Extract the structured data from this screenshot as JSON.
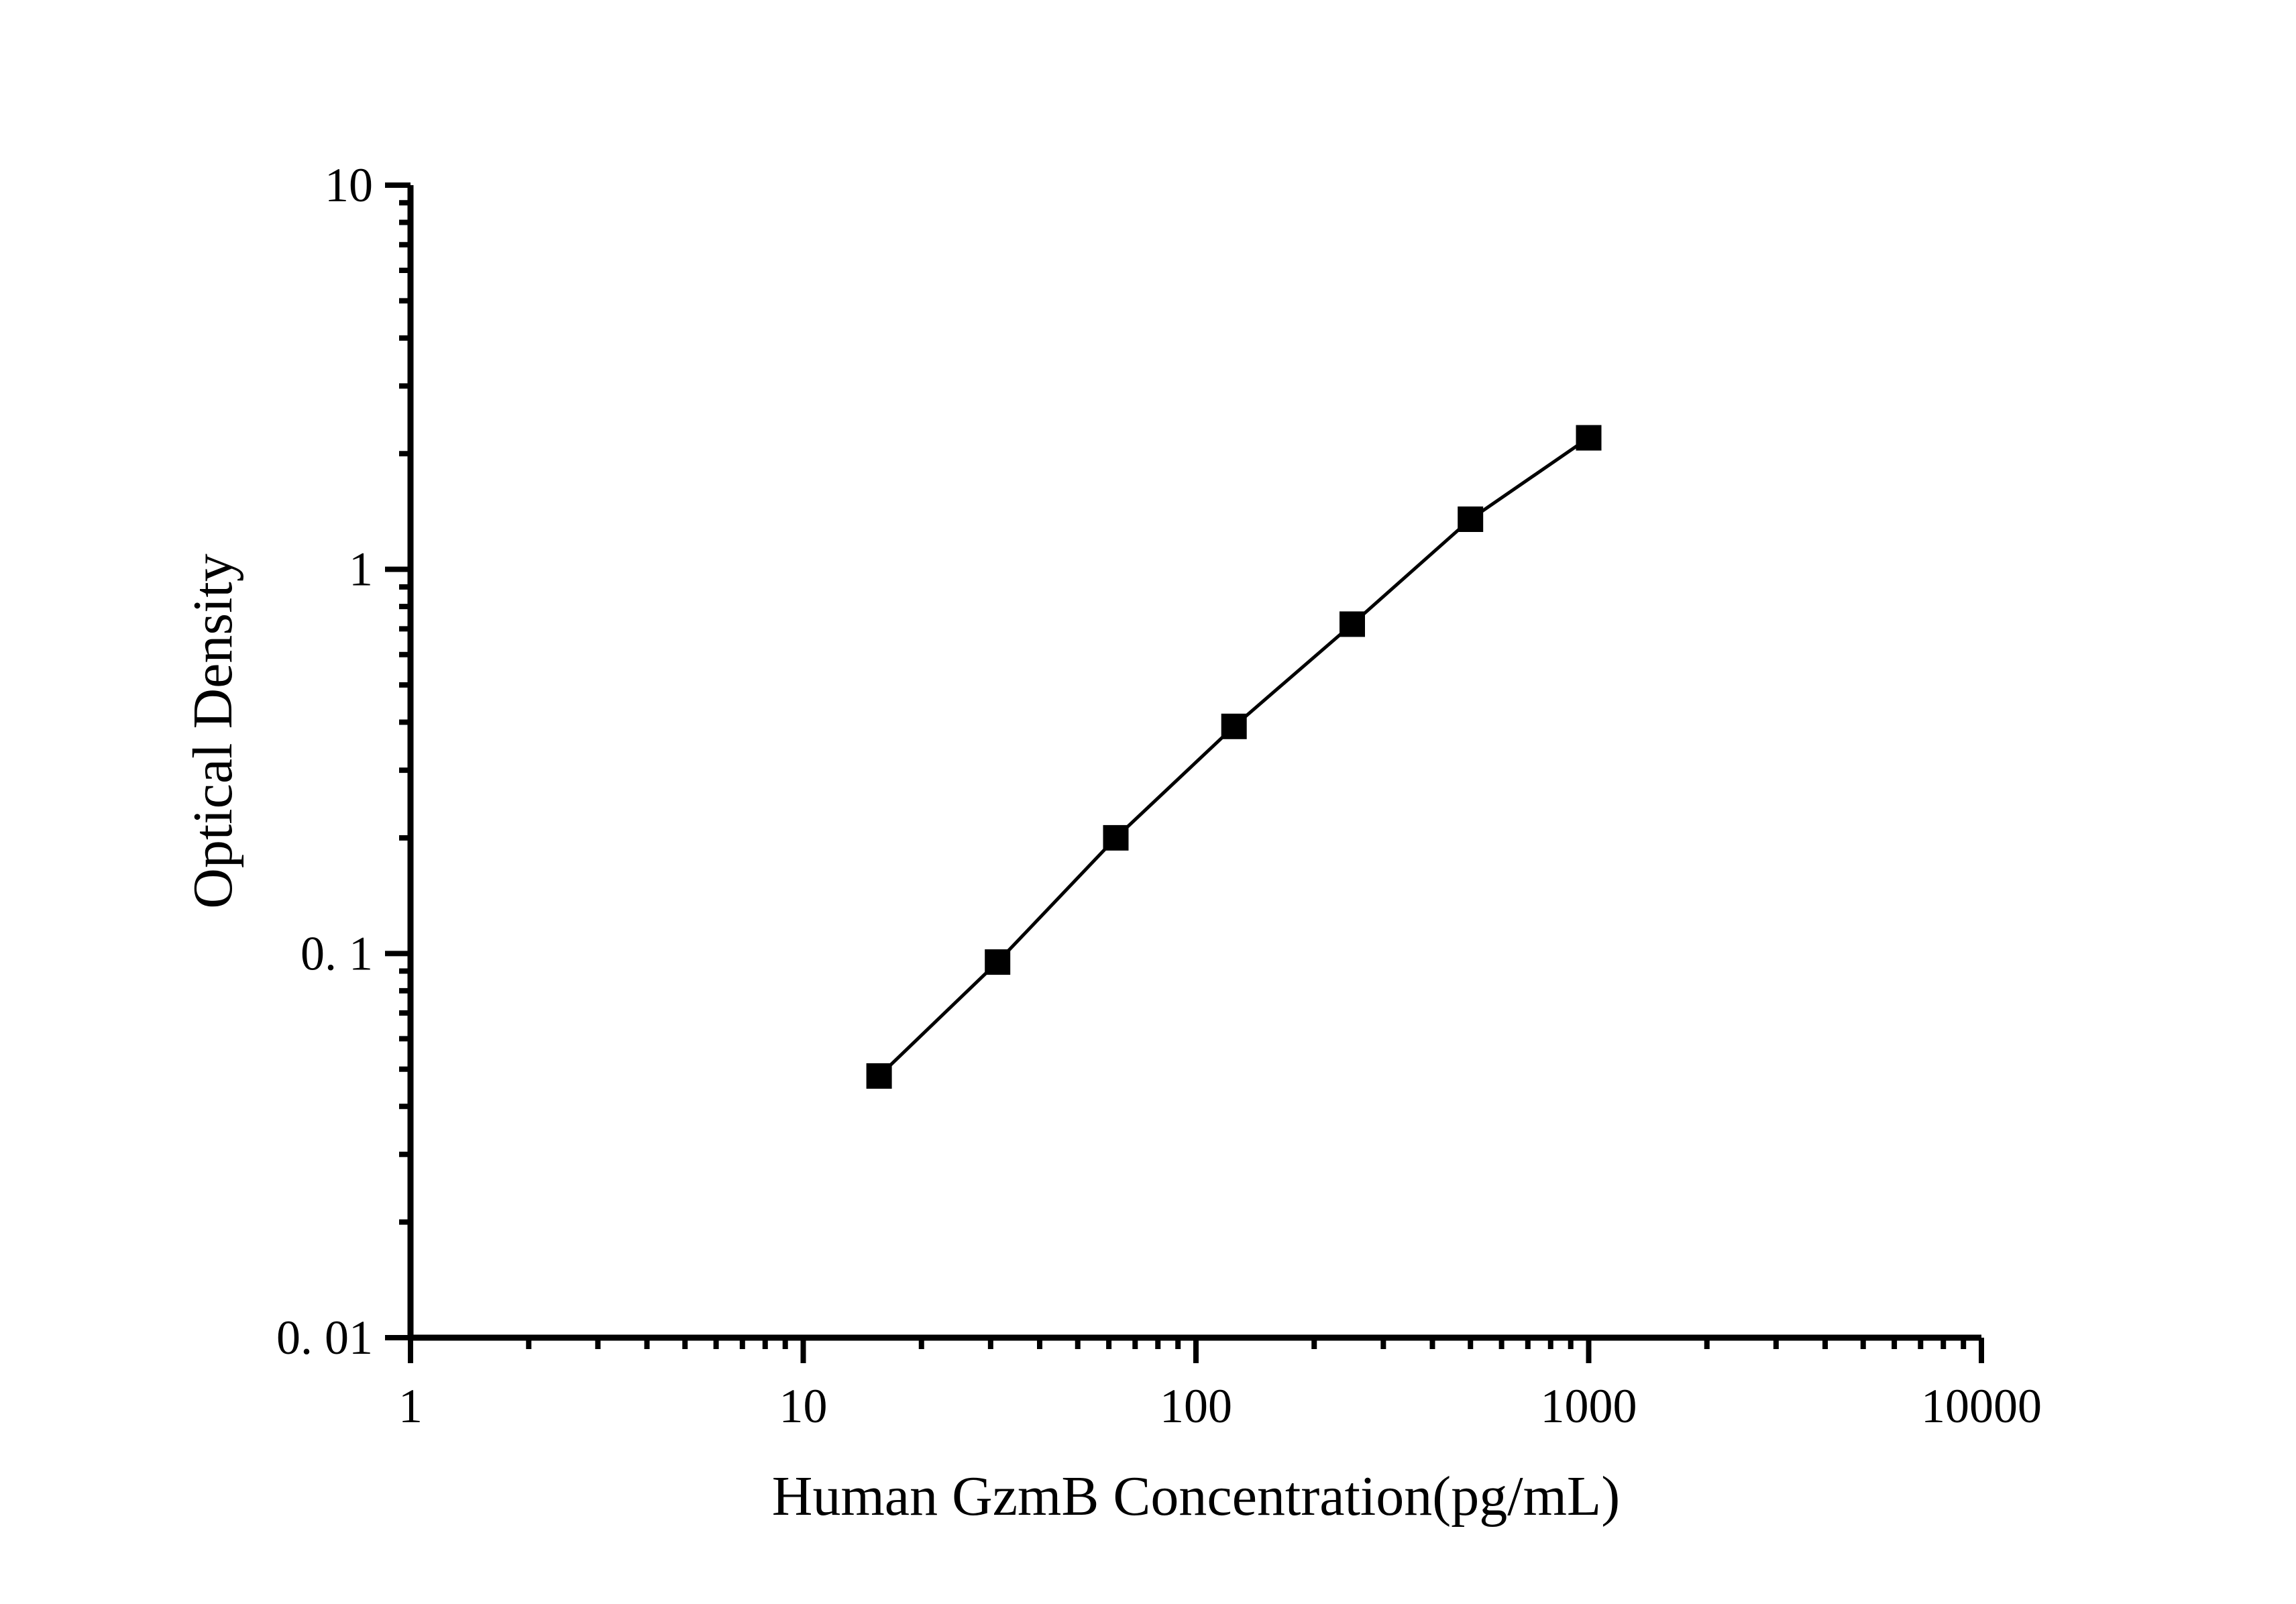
{
  "figure": {
    "background": "#ffffff",
    "axis_color": "#000000"
  },
  "chart_data": {
    "type": "line",
    "title": "",
    "xlabel": "Human GzmB Concentration(pg/mL)",
    "ylabel": "Optical Density",
    "x_scale": "log",
    "y_scale": "log",
    "xlim": [
      1,
      10000
    ],
    "ylim": [
      0.01,
      10
    ],
    "grid": false,
    "legend": false,
    "x_ticks": [
      {
        "value": 1,
        "label": "1"
      },
      {
        "value": 10,
        "label": "10"
      },
      {
        "value": 100,
        "label": "100"
      },
      {
        "value": 1000,
        "label": "1000"
      },
      {
        "value": 10000,
        "label": "10000"
      }
    ],
    "y_ticks": [
      {
        "value": 10,
        "label": "10"
      },
      {
        "value": 1,
        "label": "1"
      },
      {
        "value": 0.1,
        "label": "0. 1"
      },
      {
        "value": 0.01,
        "label": "0. 01"
      }
    ],
    "series": [
      {
        "marker": "filled-square",
        "line": "solid",
        "color": "#000000",
        "points": [
          {
            "x": 15.6,
            "y": 0.048
          },
          {
            "x": 31.25,
            "y": 0.095
          },
          {
            "x": 62.5,
            "y": 0.2
          },
          {
            "x": 125,
            "y": 0.39
          },
          {
            "x": 250,
            "y": 0.72
          },
          {
            "x": 500,
            "y": 1.35
          },
          {
            "x": 1000,
            "y": 2.2
          }
        ]
      }
    ]
  }
}
